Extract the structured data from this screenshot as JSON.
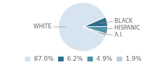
{
  "chart_data": {
    "type": "pie",
    "categories": [
      "WHITE",
      "BLACK",
      "HISPANIC",
      "A.I."
    ],
    "values": [
      87.0,
      6.2,
      4.9,
      1.9
    ],
    "value_labels": [
      "87.0%",
      "6.2%",
      "4.9%",
      "1.9%"
    ],
    "colors": [
      "#d6e4f0",
      "#2e6d8e",
      "#4a90a4",
      "#b8cdd8"
    ],
    "legend": "bottom"
  }
}
